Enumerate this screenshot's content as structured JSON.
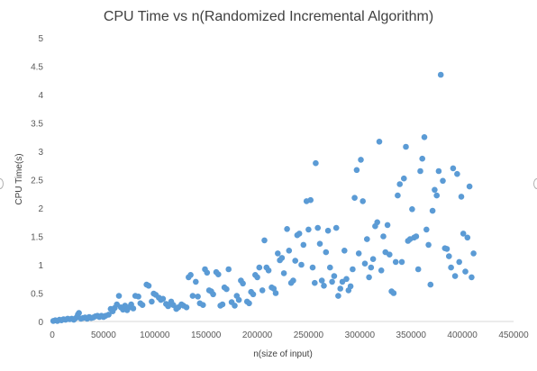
{
  "chart_data": {
    "type": "scatter",
    "title": "CPU Time vs n(Randomized Incremental Algorithm)",
    "xlabel": "n(size of input)",
    "ylabel": "CPU Time(s)",
    "xlim": [
      0,
      450000
    ],
    "ylim": [
      0,
      5
    ],
    "x_ticks": [
      0,
      50000,
      100000,
      150000,
      200000,
      250000,
      300000,
      350000,
      400000,
      450000
    ],
    "y_ticks": [
      0,
      0.5,
      1,
      1.5,
      2,
      2.5,
      3,
      3.5,
      4,
      4.5,
      5
    ],
    "x_tick_labels": [
      "0",
      "50000",
      "100000",
      "150000",
      "200000",
      "250000",
      "300000",
      "350000",
      "400000",
      "450000"
    ],
    "y_tick_labels": [
      "0",
      "0.5",
      "1",
      "1.5",
      "2",
      "2.5",
      "3",
      "3.5",
      "4",
      "4.5",
      "5"
    ],
    "grid": false,
    "legend": "none",
    "marker_color": "#5b9bd5",
    "points": [
      [
        1000,
        0.01
      ],
      [
        3000,
        0.02
      ],
      [
        5000,
        0.01
      ],
      [
        7000,
        0.03
      ],
      [
        9000,
        0.02
      ],
      [
        11000,
        0.04
      ],
      [
        13000,
        0.03
      ],
      [
        15000,
        0.05
      ],
      [
        17000,
        0.04
      ],
      [
        19000,
        0.05
      ],
      [
        21000,
        0.03
      ],
      [
        23000,
        0.06
      ],
      [
        25000,
        0.12
      ],
      [
        26000,
        0.15
      ],
      [
        28000,
        0.05
      ],
      [
        30000,
        0.06
      ],
      [
        32000,
        0.07
      ],
      [
        34000,
        0.05
      ],
      [
        36000,
        0.08
      ],
      [
        38000,
        0.06
      ],
      [
        40000,
        0.07
      ],
      [
        42000,
        0.09
      ],
      [
        44000,
        0.1
      ],
      [
        46000,
        0.08
      ],
      [
        48000,
        0.1
      ],
      [
        50000,
        0.08
      ],
      [
        52000,
        0.1
      ],
      [
        55000,
        0.12
      ],
      [
        57000,
        0.22
      ],
      [
        59000,
        0.18
      ],
      [
        61000,
        0.24
      ],
      [
        63000,
        0.3
      ],
      [
        65000,
        0.45
      ],
      [
        67000,
        0.25
      ],
      [
        69000,
        0.21
      ],
      [
        71000,
        0.28
      ],
      [
        73000,
        0.2
      ],
      [
        75000,
        0.25
      ],
      [
        77000,
        0.3
      ],
      [
        79000,
        0.23
      ],
      [
        81000,
        0.45
      ],
      [
        84000,
        0.44
      ],
      [
        86000,
        0.32
      ],
      [
        88000,
        0.29
      ],
      [
        92000,
        0.65
      ],
      [
        94000,
        0.63
      ],
      [
        97000,
        0.35
      ],
      [
        99000,
        0.49
      ],
      [
        101000,
        0.47
      ],
      [
        104000,
        0.42
      ],
      [
        106000,
        0.38
      ],
      [
        108000,
        0.4
      ],
      [
        111000,
        0.31
      ],
      [
        113000,
        0.27
      ],
      [
        116000,
        0.35
      ],
      [
        118000,
        0.29
      ],
      [
        121000,
        0.22
      ],
      [
        123000,
        0.25
      ],
      [
        126000,
        0.3
      ],
      [
        128000,
        0.28
      ],
      [
        131000,
        0.25
      ],
      [
        133000,
        0.78
      ],
      [
        135000,
        0.82
      ],
      [
        137000,
        0.45
      ],
      [
        140000,
        0.7
      ],
      [
        142000,
        0.44
      ],
      [
        144000,
        0.32
      ],
      [
        147000,
        0.29
      ],
      [
        149000,
        0.92
      ],
      [
        151000,
        0.86
      ],
      [
        153000,
        0.55
      ],
      [
        155000,
        0.53
      ],
      [
        157000,
        0.48
      ],
      [
        160000,
        0.87
      ],
      [
        162000,
        0.83
      ],
      [
        164000,
        0.28
      ],
      [
        166000,
        0.3
      ],
      [
        168000,
        0.6
      ],
      [
        170000,
        0.57
      ],
      [
        172000,
        0.92
      ],
      [
        175000,
        0.34
      ],
      [
        178000,
        0.28
      ],
      [
        180000,
        0.45
      ],
      [
        182000,
        0.38
      ],
      [
        184000,
        0.72
      ],
      [
        186000,
        0.67
      ],
      [
        190000,
        0.35
      ],
      [
        192000,
        0.32
      ],
      [
        194000,
        0.52
      ],
      [
        196000,
        0.48
      ],
      [
        198000,
        0.82
      ],
      [
        200000,
        0.78
      ],
      [
        202000,
        0.95
      ],
      [
        205000,
        0.55
      ],
      [
        207000,
        1.43
      ],
      [
        209000,
        0.95
      ],
      [
        211000,
        0.9
      ],
      [
        214000,
        0.6
      ],
      [
        216000,
        0.58
      ],
      [
        218000,
        0.5
      ],
      [
        220000,
        1.2
      ],
      [
        222000,
        1.08
      ],
      [
        224000,
        1.12
      ],
      [
        226000,
        0.85
      ],
      [
        229000,
        1.63
      ],
      [
        231000,
        1.25
      ],
      [
        233000,
        0.68
      ],
      [
        235000,
        0.72
      ],
      [
        237000,
        1.07
      ],
      [
        239000,
        1.52
      ],
      [
        241000,
        1.55
      ],
      [
        243000,
        1.0
      ],
      [
        245000,
        1.35
      ],
      [
        248000,
        2.12
      ],
      [
        250000,
        1.62
      ],
      [
        252000,
        2.14
      ],
      [
        254000,
        0.95
      ],
      [
        256000,
        0.68
      ],
      [
        257000,
        2.79
      ],
      [
        259000,
        1.65
      ],
      [
        261000,
        1.37
      ],
      [
        263000,
        0.72
      ],
      [
        265000,
        0.63
      ],
      [
        267000,
        1.22
      ],
      [
        269000,
        1.6
      ],
      [
        271000,
        0.95
      ],
      [
        273000,
        0.7
      ],
      [
        275000,
        0.8
      ],
      [
        277000,
        1.65
      ],
      [
        279000,
        0.45
      ],
      [
        281000,
        0.58
      ],
      [
        283000,
        0.7
      ],
      [
        285000,
        1.25
      ],
      [
        287000,
        0.75
      ],
      [
        289000,
        0.55
      ],
      [
        291000,
        0.62
      ],
      [
        293000,
        0.92
      ],
      [
        295000,
        2.18
      ],
      [
        297000,
        2.67
      ],
      [
        299000,
        1.2
      ],
      [
        301000,
        2.85
      ],
      [
        303000,
        2.12
      ],
      [
        305000,
        1.02
      ],
      [
        307000,
        1.45
      ],
      [
        309000,
        0.78
      ],
      [
        311000,
        0.95
      ],
      [
        313000,
        1.1
      ],
      [
        315000,
        1.68
      ],
      [
        317000,
        1.75
      ],
      [
        319000,
        3.17
      ],
      [
        321000,
        0.9
      ],
      [
        323000,
        1.5
      ],
      [
        325000,
        1.22
      ],
      [
        327000,
        1.7
      ],
      [
        329000,
        1.18
      ],
      [
        331000,
        0.53
      ],
      [
        333000,
        0.5
      ],
      [
        335000,
        1.05
      ],
      [
        337000,
        2.22
      ],
      [
        339000,
        2.42
      ],
      [
        341000,
        1.05
      ],
      [
        343000,
        2.52
      ],
      [
        345000,
        3.08
      ],
      [
        347000,
        1.42
      ],
      [
        349000,
        1.45
      ],
      [
        351000,
        1.98
      ],
      [
        353000,
        1.48
      ],
      [
        355000,
        1.5
      ],
      [
        357000,
        0.92
      ],
      [
        359000,
        2.65
      ],
      [
        361000,
        2.87
      ],
      [
        363000,
        3.25
      ],
      [
        365000,
        1.62
      ],
      [
        367000,
        1.35
      ],
      [
        369000,
        0.65
      ],
      [
        371000,
        1.95
      ],
      [
        373000,
        2.32
      ],
      [
        375000,
        2.22
      ],
      [
        377000,
        2.65
      ],
      [
        379000,
        4.35
      ],
      [
        381000,
        2.48
      ],
      [
        383000,
        1.29
      ],
      [
        385000,
        1.28
      ],
      [
        387000,
        1.15
      ],
      [
        389000,
        0.95
      ],
      [
        391000,
        2.7
      ],
      [
        393000,
        0.8
      ],
      [
        395000,
        2.6
      ],
      [
        397000,
        1.05
      ],
      [
        399000,
        2.2
      ],
      [
        401000,
        1.55
      ],
      [
        403000,
        0.88
      ],
      [
        405000,
        1.48
      ],
      [
        407000,
        2.38
      ],
      [
        409000,
        0.78
      ],
      [
        411000,
        1.2
      ]
    ]
  }
}
